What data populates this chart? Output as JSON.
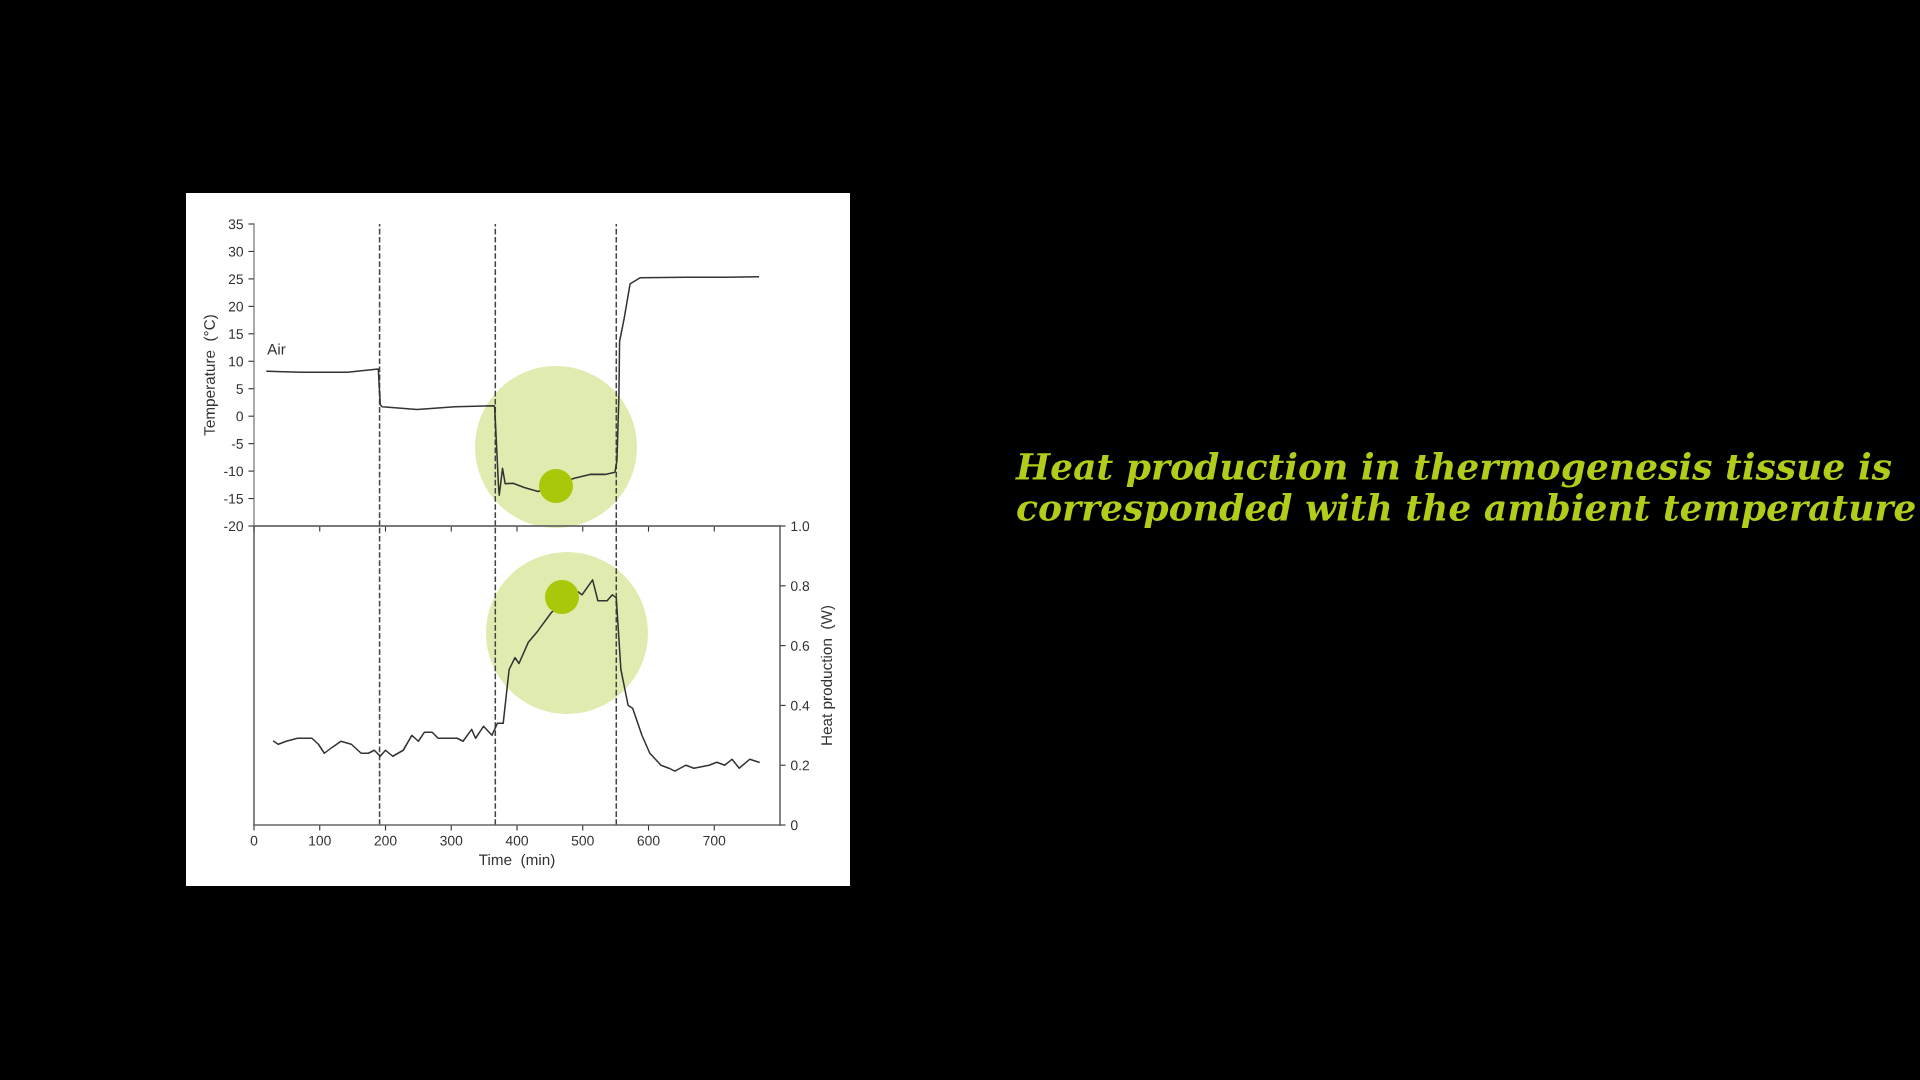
{
  "chart_data": [
    {
      "type": "line",
      "ylabel": "Temperature  (°C)",
      "xlim": [
        0,
        800
      ],
      "ylim": [
        -20,
        35
      ],
      "xticks": [
        {
          "value": 0,
          "label": null
        },
        {
          "value": 100,
          "label": null
        },
        {
          "value": 200,
          "label": null
        },
        {
          "value": 300,
          "label": null
        },
        {
          "value": 400,
          "label": null
        },
        {
          "value": 500,
          "label": null
        },
        {
          "value": 600,
          "label": null
        },
        {
          "value": 700,
          "label": null
        }
      ],
      "yticks": [
        -20,
        -15,
        -10,
        -5,
        0,
        5,
        10,
        15,
        20,
        25,
        30,
        35
      ],
      "tick_labels": "y",
      "grid": false,
      "legend": false,
      "series": [
        {
          "name": "Air",
          "color": "#333333",
          "x": [
            20,
            72,
            142,
            189,
            192,
            195,
            248,
            306,
            365,
            366,
            372,
            373,
            378,
            382,
            394,
            411,
            432,
            487,
            511,
            534,
            549,
            552,
            555,
            556,
            563,
            572,
            587,
            657,
            716,
            767
          ],
          "values": [
            8.2,
            8.0,
            8.0,
            8.6,
            2.1,
            1.7,
            1.2,
            1.7,
            1.9,
            1.7,
            -13.0,
            -14.4,
            -9.5,
            -12.3,
            -12.2,
            -13.0,
            -13.7,
            -11.3,
            -10.6,
            -10.6,
            -10.2,
            -8.1,
            3.8,
            13.6,
            17.8,
            24.1,
            25.2,
            25.3,
            25.3,
            25.4
          ]
        }
      ],
      "ref_lines": [
        {
          "axis": "x",
          "value": 191,
          "color": "#444444",
          "line_style": "dashed"
        },
        {
          "axis": "x",
          "value": 367,
          "color": "#444444",
          "line_style": "dashed"
        },
        {
          "axis": "x",
          "value": 551,
          "color": "#444444",
          "line_style": "dashed"
        }
      ],
      "annotations": [
        "Heat production in thermogenesis tissue is corresponded with the ambient temperature"
      ]
    },
    {
      "type": "line",
      "xlabel": "Time  (min)",
      "y2label": "Heat production  (W)",
      "xlim": [
        0,
        800
      ],
      "y2lim": [
        0,
        1.0
      ],
      "xticks": [
        0,
        100,
        200,
        300,
        400,
        500,
        600,
        700
      ],
      "y2ticks": [
        0,
        0.2,
        0.4,
        0.6,
        0.8,
        {
          "value": 1,
          "label": "1.0"
        }
      ],
      "grid": false,
      "legend": false,
      "series": [
        {
          "color": "#333333",
          "axis": "y2",
          "x": [
            30,
            37,
            49,
            66,
            78,
            88,
            98,
            107,
            119,
            132,
            148,
            163,
            174,
            183,
            192,
            200,
            211,
            227,
            240,
            250,
            259,
            271,
            280,
            300,
            309,
            318,
            331,
            337,
            349,
            362,
            370,
            379,
            388,
            397,
            403,
            417,
            432,
            452,
            493,
            499,
            515,
            523,
            537,
            545,
            551,
            558,
            569,
            576,
            590,
            602,
            619,
            631,
            640,
            657,
            669,
            692,
            704,
            716,
            727,
            738,
            754,
            768
          ],
          "values": [
            0.28,
            0.27,
            0.28,
            0.29,
            0.29,
            0.29,
            0.27,
            0.24,
            0.26,
            0.28,
            0.27,
            0.24,
            0.24,
            0.25,
            0.23,
            0.25,
            0.23,
            0.25,
            0.3,
            0.28,
            0.31,
            0.31,
            0.29,
            0.29,
            0.29,
            0.28,
            0.32,
            0.29,
            0.33,
            0.3,
            0.34,
            0.34,
            0.52,
            0.56,
            0.54,
            0.61,
            0.65,
            0.71,
            0.78,
            0.77,
            0.82,
            0.75,
            0.75,
            0.77,
            0.76,
            0.52,
            0.4,
            0.39,
            0.3,
            0.24,
            0.2,
            0.19,
            0.18,
            0.2,
            0.19,
            0.2,
            0.21,
            0.2,
            0.22,
            0.19,
            0.22,
            0.21
          ]
        }
      ],
      "ref_lines": [
        {
          "axis": "x",
          "value": 191,
          "color": "#444444",
          "line_style": "dashed"
        },
        {
          "axis": "x",
          "value": 367,
          "color": "#444444",
          "line_style": "dashed"
        },
        {
          "axis": "x",
          "value": 551,
          "color": "#444444",
          "line_style": "dashed"
        }
      ]
    }
  ]
}
